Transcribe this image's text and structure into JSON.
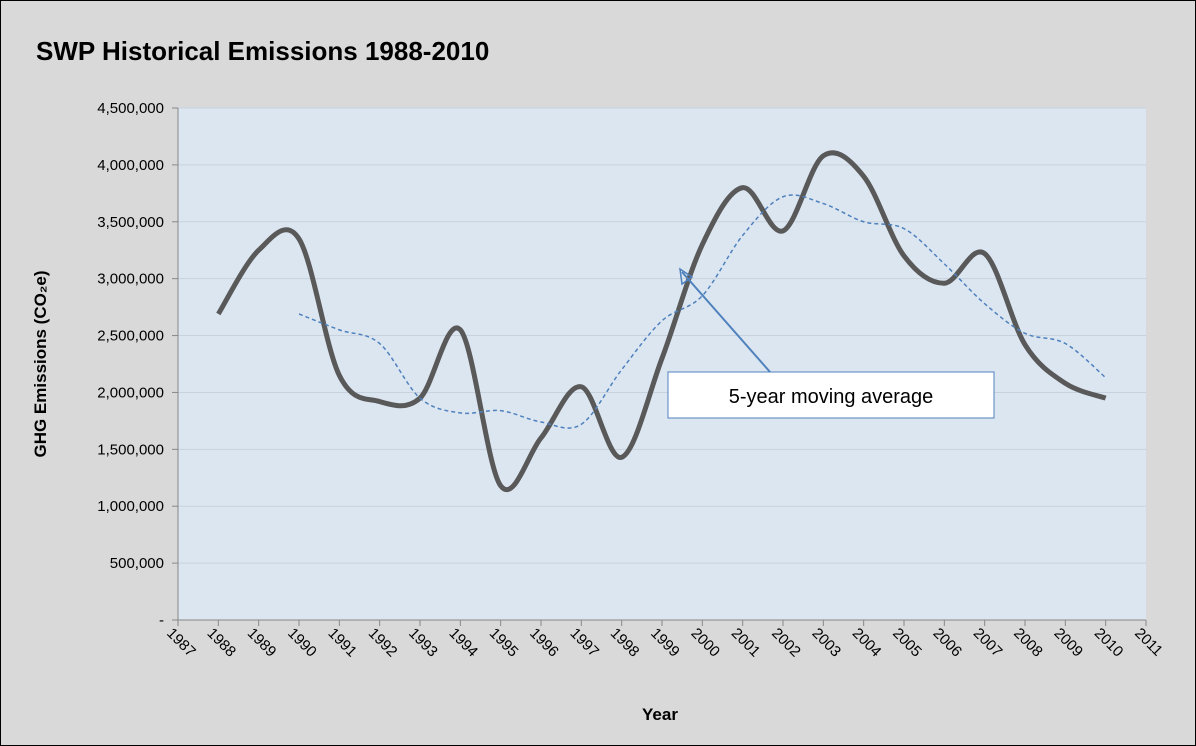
{
  "chart_data": {
    "type": "line",
    "title": "SWP Historical Emissions 1988-2010",
    "x_label": "Year",
    "y_label": "GHG Emissions (CO₂e)",
    "annotation": "5-year moving average",
    "x": [
      1988,
      1989,
      1990,
      1991,
      1992,
      1993,
      1994,
      1995,
      1996,
      1997,
      1998,
      1999,
      2000,
      2001,
      2002,
      2003,
      2004,
      2005,
      2006,
      2007,
      2008,
      2009,
      2010
    ],
    "series": [
      {
        "color": "#595959",
        "style": "solid",
        "values": [
          2690000,
          3250000,
          3350000,
          2150000,
          1920000,
          1950000,
          2550000,
          1180000,
          1600000,
          2050000,
          1430000,
          2300000,
          3300000,
          3800000,
          3420000,
          4080000,
          3900000,
          3200000,
          2960000,
          3220000,
          2420000,
          2080000,
          1950000
        ]
      },
      {
        "color": "#4f81bd",
        "style": "dashed",
        "values": [
          null,
          null,
          2690000,
          2550000,
          2430000,
          1950000,
          1820000,
          1840000,
          1740000,
          1720000,
          2200000,
          2630000,
          2850000,
          3380000,
          3720000,
          3660000,
          3500000,
          3440000,
          3130000,
          2780000,
          2520000,
          2430000,
          2130000
        ]
      }
    ],
    "xlim": [
      1987,
      2011
    ],
    "xticks": [
      1987,
      1988,
      1989,
      1990,
      1991,
      1992,
      1993,
      1994,
      1995,
      1996,
      1997,
      1998,
      1999,
      2000,
      2001,
      2002,
      2003,
      2004,
      2005,
      2006,
      2007,
      2008,
      2009,
      2010,
      2011
    ],
    "ylim": [
      0,
      4500000
    ],
    "yticks": [
      {
        "value": 0,
        "label": "-"
      },
      {
        "value": 500000,
        "label": "500,000"
      },
      {
        "value": 1000000,
        "label": "1,000,000"
      },
      {
        "value": 1500000,
        "label": "1,500,000"
      },
      {
        "value": 2000000,
        "label": "2,000,000"
      },
      {
        "value": 2500000,
        "label": "2,500,000"
      },
      {
        "value": 3000000,
        "label": "3,000,000"
      },
      {
        "value": 3500000,
        "label": "3,500,000"
      },
      {
        "value": 4000000,
        "label": "4,000,000"
      },
      {
        "value": 4500000,
        "label": "4,500,000"
      }
    ],
    "grid": true
  }
}
